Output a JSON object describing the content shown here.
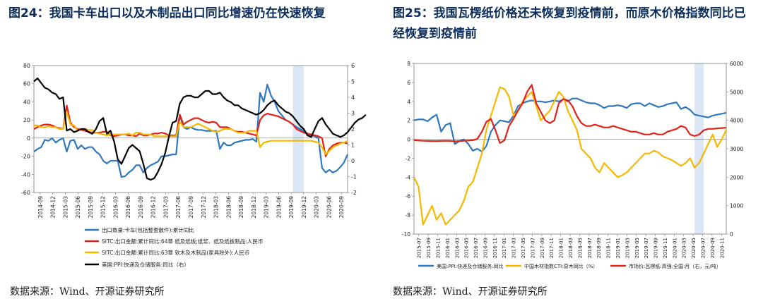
{
  "left": {
    "title": "图24：我国卡车出口以及木制品出口同比增速仍在快速恢复",
    "source": "数据来源：Wind、开源证券研究所",
    "chart_data": {
      "type": "line",
      "y_left": {
        "min": -60,
        "max": 80,
        "ticks": [
          -60,
          -40,
          -20,
          0,
          20,
          40,
          60,
          80
        ]
      },
      "y_right": {
        "min": -2,
        "max": 6,
        "ticks": [
          -2,
          -1,
          0,
          1,
          2,
          3,
          4,
          5,
          6
        ]
      },
      "x_ticks": [
        "2014-09",
        "2014-12",
        "2015-03",
        "2015-06",
        "2015-09",
        "2015-12",
        "2016-03",
        "2016-06",
        "2016-09",
        "2016-12",
        "2017-03",
        "2017-06",
        "2017-09",
        "2017-12",
        "2018-03",
        "2018-06",
        "2018-09",
        "2018-12",
        "2019-03",
        "2019-06",
        "2019-09",
        "2019-12",
        "2020-03",
        "2020-06",
        "2020-09"
      ],
      "highlight": {
        "from": 71,
        "to": 74,
        "color": "#dbe7f4"
      },
      "series": [
        {
          "name": "出口数量:卡车(包括整套散件):累计同比",
          "axis": "left",
          "color": "#2f78bd",
          "values": [
            -15,
            -12,
            -10,
            -2,
            -3,
            0,
            -5,
            -2,
            0,
            -15,
            -3,
            -2,
            -12,
            -8,
            -12,
            -10,
            -10,
            -15,
            -18,
            -25,
            -28,
            -25,
            -25,
            -25,
            -43,
            -42,
            -38,
            -35,
            -30,
            -30,
            -38,
            -33,
            -30,
            -28,
            -26,
            -20,
            -20,
            -19,
            -18,
            -18,
            25,
            12,
            10,
            12,
            10,
            9,
            9,
            8,
            8,
            8,
            8,
            -12,
            -5,
            -8,
            -8,
            -5,
            -4,
            -3,
            -2,
            -2,
            -1,
            -4,
            50,
            40,
            59,
            47,
            40,
            30,
            25,
            20,
            18,
            15,
            12,
            10,
            8,
            5,
            3,
            2,
            0,
            -33,
            -38,
            -35,
            -38,
            -36,
            -32,
            -27,
            -18
          ]
        },
        {
          "name": "SITC:出口金额:累计同比:64章 纸及纸板;纸浆、纸及纸板制品:人民币",
          "axis": "left",
          "color": "#e0221a",
          "values": [
            10,
            12,
            14,
            15,
            15,
            14,
            12,
            11,
            10,
            36,
            17,
            12,
            10,
            9,
            8,
            7,
            6,
            6,
            6,
            7,
            7,
            3,
            2,
            3,
            4,
            4,
            3,
            3,
            2,
            5,
            3,
            3,
            4,
            5,
            5,
            6,
            5,
            3,
            3,
            3,
            26,
            15,
            18,
            20,
            22,
            22,
            20,
            18,
            17,
            18,
            17,
            12,
            12,
            12,
            10,
            8,
            7,
            7,
            6,
            5,
            4,
            3,
            20,
            25,
            27,
            26,
            25,
            24,
            22,
            20,
            18,
            15,
            10,
            8,
            6,
            5,
            4,
            3,
            2,
            0,
            -20,
            -12,
            -8,
            -6,
            -5,
            -5,
            -6
          ]
        },
        {
          "name": "SITC:出口金额:累计同比:63章 软木及木制品(家具除外):人民币",
          "axis": "left",
          "color": "#f5b800",
          "values": [
            14,
            14,
            12,
            12,
            13,
            12,
            12,
            10,
            10,
            29,
            15,
            14,
            8,
            10,
            10,
            9,
            9,
            6,
            5,
            4,
            3,
            4,
            4,
            4,
            4,
            4,
            5,
            3,
            6,
            6,
            4,
            4,
            4,
            2,
            2,
            2,
            2,
            2,
            2,
            2,
            18,
            12,
            12,
            12,
            14,
            16,
            14,
            12,
            10,
            8,
            7,
            8,
            10,
            10,
            10,
            8,
            6,
            6,
            6,
            8,
            8,
            8,
            -10,
            -5,
            -4,
            -3,
            -3,
            -3,
            -3,
            -3,
            -3,
            -3,
            -3,
            -3,
            -3,
            -3,
            -3,
            -4,
            -5,
            -10,
            -18,
            -14,
            -10,
            -8,
            -6,
            -5,
            -3
          ]
        },
        {
          "name": "美国:PPI:快递及仓储服务:同比（右）",
          "axis": "right",
          "color": "#000000",
          "values": [
            5.0,
            5.2,
            4.9,
            4.6,
            4.5,
            4.3,
            4.2,
            3.9,
            4.0,
            1.9,
            2.0,
            1.8,
            1.9,
            2.0,
            2.0,
            1.8,
            1.7,
            2.0,
            2.5,
            2.7,
            1.7,
            1.9,
            1.2,
            0.1,
            -0.2,
            0.3,
            0.8,
            1.0,
            0.8,
            0.6,
            -0.2,
            -1.1,
            -1.2,
            -1.1,
            -0.7,
            -0.2,
            0.5,
            1.5,
            2.4,
            2.5,
            3.6,
            4.0,
            4.1,
            4.1,
            4.0,
            4.0,
            4.2,
            4.4,
            4.4,
            4.2,
            4.2,
            4.3,
            4.0,
            3.8,
            3.7,
            3.5,
            3.5,
            3.3,
            3.2,
            3.1,
            3.0,
            2.9,
            3.0,
            3.2,
            3.5,
            3.7,
            3.8,
            3.5,
            3.3,
            3.1,
            3.0,
            2.8,
            2.5,
            2.2,
            2.0,
            1.6,
            1.5,
            2.0,
            2.5,
            2.7,
            2.3,
            2.0,
            1.7,
            1.6,
            1.5,
            1.6,
            1.8,
            2.1,
            2.4,
            2.6,
            2.7,
            2.9
          ]
        }
      ]
    }
  },
  "right": {
    "title": "图25：我国瓦楞纸价格还未恢复到疫情前，而原木价格指数同比已经恢复到疫情前",
    "source": "数据来源：Wind、开源证券研究所",
    "chart_data": {
      "type": "line",
      "y_left": {
        "min": -10,
        "max": 8,
        "ticks": [
          -10,
          -8,
          -6,
          -4,
          -2,
          0,
          2,
          4,
          6,
          8
        ]
      },
      "y_right": {
        "min": 0,
        "max": 6000,
        "ticks": [
          0,
          1000,
          2000,
          3000,
          4000,
          5000,
          6000
        ]
      },
      "x_ticks": [
        "2015-07",
        "2015-09",
        "2015-11",
        "2016-01",
        "2016-03",
        "2016-05",
        "2016-07",
        "2016-09",
        "2016-11",
        "2017-01",
        "2017-03",
        "2017-05",
        "2017-07",
        "2017-09",
        "2017-11",
        "2018-01",
        "2018-03",
        "2018-05",
        "2018-07",
        "2018-09",
        "2018-11",
        "2019-01",
        "2019-03",
        "2019-05",
        "2019-07",
        "2019-09",
        "2019-11",
        "2020-01",
        "2020-03",
        "2020-05",
        "2020-07",
        "2020-09",
        "2020-11"
      ],
      "highlight": {
        "from": 62,
        "to": 64,
        "color": "#dbe7f4"
      },
      "series": [
        {
          "name": "美国:PPI:快递及仓储服务:同比",
          "axis": "left",
          "color": "#2f78bd",
          "values": [
            2.0,
            2.1,
            2.1,
            1.9,
            2.3,
            2.6,
            0.8,
            1.5,
            1.7,
            -0.5,
            -0.2,
            0.0,
            -0.5,
            -1.2,
            -1.0,
            -1.3,
            -0.7,
            0.8,
            1.5,
            2.0,
            1.9,
            1.8,
            2.5,
            3.5,
            3.8,
            4.0,
            4.1,
            4.0,
            4.0,
            3.9,
            4.0,
            4.1,
            4.0,
            4.2,
            4.0,
            4.3,
            4.3,
            4.1,
            3.9,
            3.8,
            3.8,
            3.6,
            3.3,
            3.5,
            3.5,
            3.6,
            3.5,
            3.3,
            3.7,
            3.8,
            3.8,
            3.5,
            3.8,
            3.6,
            3.4,
            3.5,
            3.7,
            3.8,
            3.9,
            3.2,
            3.4,
            3.1,
            2.6,
            2.5,
            2.4,
            2.3,
            2.5,
            2.6,
            2.7,
            2.8
          ]
        },
        {
          "name": "中国木材指数CTI:原木同比（%）",
          "axis": "left",
          "color": "#f5b800",
          "values": [
            -4.0,
            -5.0,
            -9.0,
            -8.0,
            -7.0,
            -8.5,
            -7.8,
            -9.0,
            -8.5,
            -8.0,
            -7.5,
            -6.5,
            -5.0,
            -4.5,
            -3.0,
            -1.5,
            1.0,
            2.5,
            4.0,
            5.5,
            5.3,
            4.5,
            2.5,
            3.0,
            4.0,
            4.5,
            5.0,
            3.5,
            2.0,
            2.5,
            3.0,
            4.0,
            5.0,
            4.5,
            3.0,
            2.0,
            1.0,
            -1.0,
            -1.5,
            -2.0,
            -3.0,
            -3.5,
            -2.5,
            -3.0,
            -3.5,
            -4.0,
            -3.8,
            -3.5,
            -3.0,
            -2.5,
            -2.0,
            -1.5,
            -1.5,
            -1.2,
            -1.4,
            -1.8,
            -2.0,
            -2.2,
            -2.5,
            -2.8,
            -2.5,
            -2.0,
            -3.0,
            -2.5,
            -1.5,
            -0.5,
            0.5,
            -0.8,
            0.0,
            1.0
          ]
        },
        {
          "name": "市场价:瓦楞纸:高强:全国:月（右，元/吨）",
          "axis": "right",
          "color": "#e0221a",
          "values": [
            3300,
            3290,
            3280,
            3275,
            3270,
            3270,
            3275,
            3280,
            3275,
            3260,
            3270,
            3280,
            3290,
            3300,
            3350,
            3600,
            3950,
            4050,
            3650,
            3200,
            3300,
            3800,
            4050,
            4350,
            4600,
            5000,
            5250,
            4600,
            4300,
            4000,
            3900,
            4000,
            4600,
            4750,
            4700,
            4500,
            4150,
            3900,
            3800,
            3800,
            3850,
            3800,
            3750,
            3750,
            3800,
            3750,
            3700,
            3650,
            3600,
            3600,
            3550,
            3500,
            3500,
            3550,
            3500,
            3500,
            3600,
            3650,
            3700,
            3800,
            3750,
            3500,
            3450,
            3500,
            3650,
            3700,
            3700,
            3720,
            3730,
            3740
          ]
        }
      ]
    }
  }
}
